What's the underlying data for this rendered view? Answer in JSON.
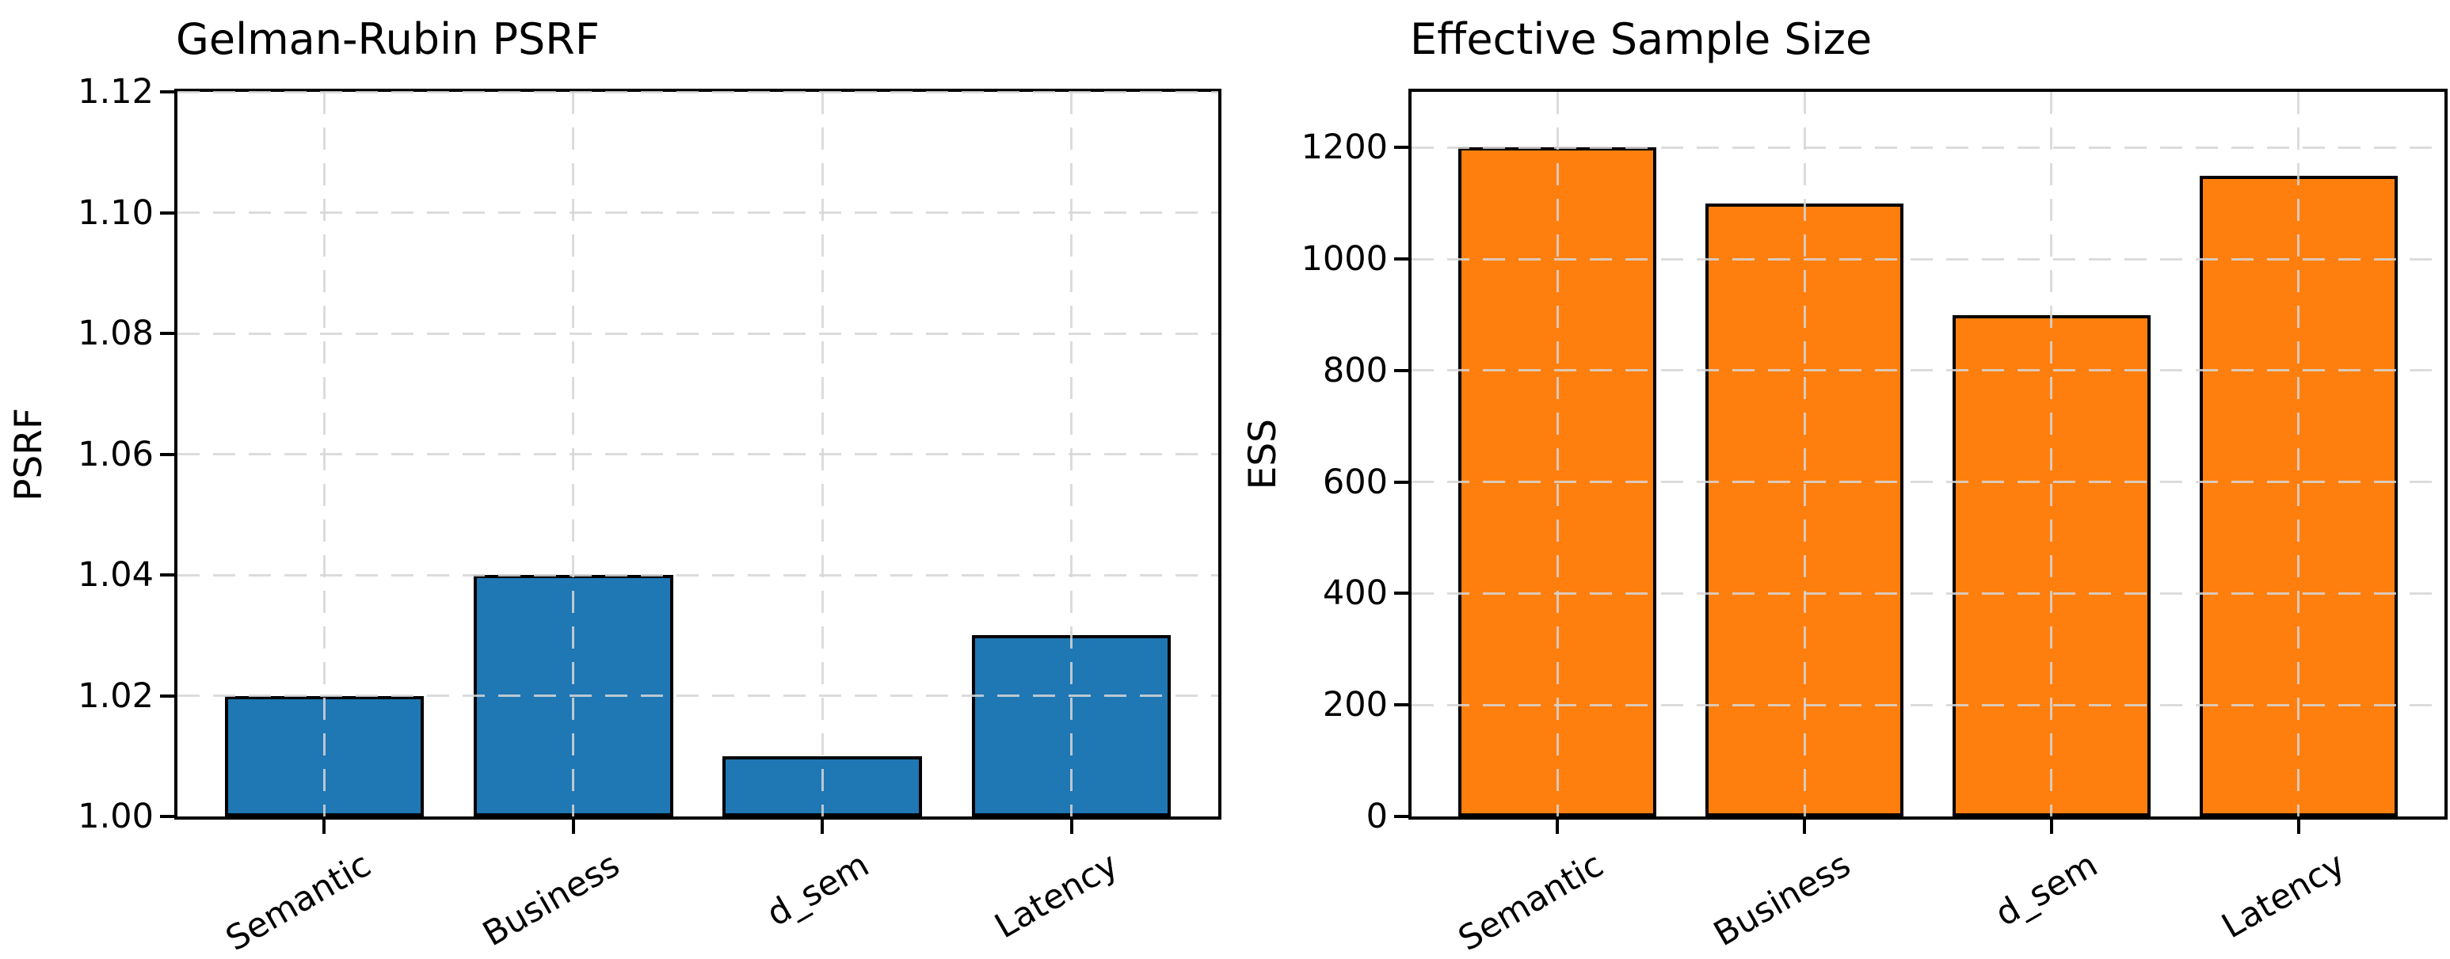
{
  "figure_background": "#ffffff",
  "chart_data": [
    {
      "type": "bar",
      "title": "Gelman-Rubin PSRF",
      "xlabel": "",
      "ylabel": "PSRF",
      "categories": [
        "Semantic",
        "Business",
        "d_sem",
        "Latency"
      ],
      "values": [
        1.02,
        1.04,
        1.01,
        1.03
      ],
      "ylim": [
        1.0,
        1.12
      ],
      "yticks": [
        1.0,
        1.02,
        1.04,
        1.06,
        1.08,
        1.1,
        1.12
      ],
      "ytick_labels": [
        "1.00",
        "1.02",
        "1.04",
        "1.06",
        "1.08",
        "1.10",
        "1.12"
      ],
      "bar_color": "#1f77b4",
      "bar_edge_color": "#000000",
      "grid": true,
      "grid_style": "dashed",
      "grid_color": "#d6d6d6",
      "xtick_rotation_deg": 30,
      "title_align": "left",
      "legend": null
    },
    {
      "type": "bar",
      "title": "Effective Sample Size",
      "xlabel": "",
      "ylabel": "ESS",
      "categories": [
        "Semantic",
        "Business",
        "d_sem",
        "Latency"
      ],
      "values": [
        1200,
        1100,
        900,
        1150
      ],
      "ylim": [
        0,
        1300
      ],
      "yticks": [
        0,
        200,
        400,
        600,
        800,
        1000,
        1200
      ],
      "ytick_labels": [
        "0",
        "200",
        "400",
        "600",
        "800",
        "1000",
        "1200"
      ],
      "bar_color": "#ff7f0e",
      "bar_edge_color": "#000000",
      "grid": true,
      "grid_style": "dashed",
      "grid_color": "#d6d6d6",
      "xtick_rotation_deg": 30,
      "title_align": "left",
      "legend": null
    }
  ]
}
